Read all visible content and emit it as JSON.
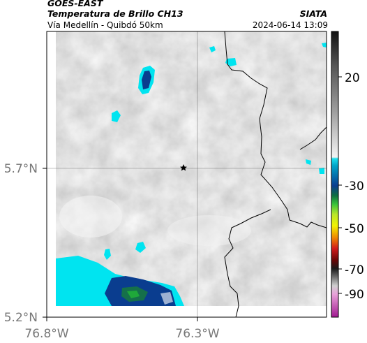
{
  "header": {
    "satellite": "GOES-EAST",
    "product": "Temperatura de Brillo CH13",
    "route": "Vía Medellín - Quibdó 50km",
    "organization": "SIATA",
    "datetime": "2024-06-14 13:09"
  },
  "map": {
    "lat_ticks": [
      {
        "value": 5.7,
        "label": "5.7°N"
      },
      {
        "value": 5.2,
        "label": "5.2°N"
      }
    ],
    "lon_ticks": [
      {
        "value": -76.8,
        "label": "76.8°W"
      },
      {
        "value": -76.3,
        "label": "76.3°W"
      }
    ],
    "marker_icon": "star-icon"
  },
  "colorbar": {
    "ticks": [
      "20",
      "-30",
      "-50",
      "-70",
      "-90"
    ],
    "colors": {
      "warm": "#f2f2f2",
      "mid": "#9a9a9a",
      "dark": "#141414",
      "cyan": "#00e4f0",
      "blue": "#0a3d8f",
      "green": "#1a8f2f",
      "yellow": "#f2f200",
      "red": "#d21a1a",
      "magenta": "#c040a0"
    }
  }
}
